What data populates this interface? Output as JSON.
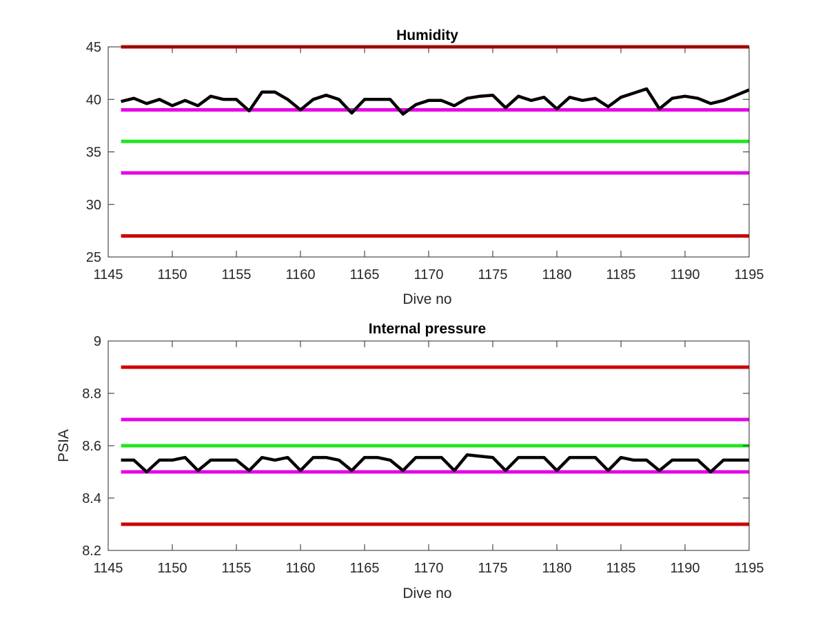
{
  "chart_data": [
    {
      "type": "line",
      "title": "Humidity",
      "xlabel": "Dive no",
      "ylabel": "",
      "xlim": [
        1145,
        1195
      ],
      "ylim": [
        25,
        45
      ],
      "xticks": [
        1145,
        1150,
        1155,
        1160,
        1165,
        1170,
        1175,
        1180,
        1185,
        1190,
        1195
      ],
      "yticks": [
        25,
        30,
        35,
        40,
        45
      ],
      "grid": false,
      "thresholds": [
        {
          "value": 45,
          "color": "#cc0000"
        },
        {
          "value": 39,
          "color": "#e600e6"
        },
        {
          "value": 36,
          "color": "#22e622"
        },
        {
          "value": 33,
          "color": "#e600e6"
        },
        {
          "value": 27,
          "color": "#cc0000"
        }
      ],
      "series": [
        {
          "color": "#000000",
          "x": [
            1146,
            1147,
            1148,
            1149,
            1150,
            1151,
            1152,
            1153,
            1154,
            1155,
            1156,
            1157,
            1158,
            1159,
            1160,
            1161,
            1162,
            1163,
            1164,
            1165,
            1166,
            1167,
            1168,
            1169,
            1170,
            1171,
            1172,
            1173,
            1174,
            1175,
            1176,
            1177,
            1178,
            1179,
            1180,
            1181,
            1182,
            1183,
            1184,
            1185,
            1186,
            1187,
            1188,
            1189,
            1190,
            1191,
            1192,
            1193,
            1194,
            1195
          ],
          "y": [
            39.8,
            40.1,
            39.6,
            40.0,
            39.4,
            39.9,
            39.4,
            40.3,
            40.0,
            40.0,
            38.9,
            40.7,
            40.7,
            40.0,
            39.0,
            40.0,
            40.4,
            40.0,
            38.7,
            40.0,
            40.0,
            40.0,
            38.6,
            39.5,
            39.9,
            39.9,
            39.4,
            40.1,
            40.3,
            40.4,
            39.2,
            40.3,
            39.9,
            40.2,
            39.1,
            40.2,
            39.9,
            40.1,
            39.3,
            40.2,
            40.6,
            41.0,
            39.1,
            40.1,
            40.3,
            40.1,
            39.6,
            39.9,
            40.4,
            40.9
          ]
        }
      ]
    },
    {
      "type": "line",
      "title": "Internal pressure",
      "xlabel": "Dive no",
      "ylabel": "PSIA",
      "xlim": [
        1145,
        1195
      ],
      "ylim": [
        8.2,
        9
      ],
      "xticks": [
        1145,
        1150,
        1155,
        1160,
        1165,
        1170,
        1175,
        1180,
        1185,
        1190,
        1195
      ],
      "yticks": [
        8.2,
        8.4,
        8.6,
        8.8,
        9
      ],
      "grid": false,
      "thresholds": [
        {
          "value": 8.9,
          "color": "#cc0000"
        },
        {
          "value": 8.7,
          "color": "#e600e6"
        },
        {
          "value": 8.6,
          "color": "#22e622"
        },
        {
          "value": 8.5,
          "color": "#e600e6"
        },
        {
          "value": 8.3,
          "color": "#cc0000"
        }
      ],
      "series": [
        {
          "color": "#000000",
          "x": [
            1146,
            1147,
            1148,
            1149,
            1150,
            1151,
            1152,
            1153,
            1154,
            1155,
            1156,
            1157,
            1158,
            1159,
            1160,
            1161,
            1162,
            1163,
            1164,
            1165,
            1166,
            1167,
            1168,
            1169,
            1170,
            1171,
            1172,
            1173,
            1174,
            1175,
            1176,
            1177,
            1178,
            1179,
            1180,
            1181,
            1182,
            1183,
            1184,
            1185,
            1186,
            1187,
            1188,
            1189,
            1190,
            1191,
            1192,
            1193,
            1194,
            1195
          ],
          "y": [
            8.545,
            8.545,
            8.5,
            8.545,
            8.545,
            8.555,
            8.505,
            8.545,
            8.545,
            8.545,
            8.505,
            8.555,
            8.545,
            8.555,
            8.505,
            8.555,
            8.555,
            8.545,
            8.505,
            8.555,
            8.555,
            8.545,
            8.505,
            8.555,
            8.555,
            8.555,
            8.505,
            8.565,
            8.56,
            8.555,
            8.505,
            8.555,
            8.555,
            8.555,
            8.505,
            8.555,
            8.555,
            8.555,
            8.505,
            8.555,
            8.545,
            8.545,
            8.505,
            8.545,
            8.545,
            8.545,
            8.5,
            8.545,
            8.545,
            8.545
          ]
        }
      ]
    }
  ]
}
